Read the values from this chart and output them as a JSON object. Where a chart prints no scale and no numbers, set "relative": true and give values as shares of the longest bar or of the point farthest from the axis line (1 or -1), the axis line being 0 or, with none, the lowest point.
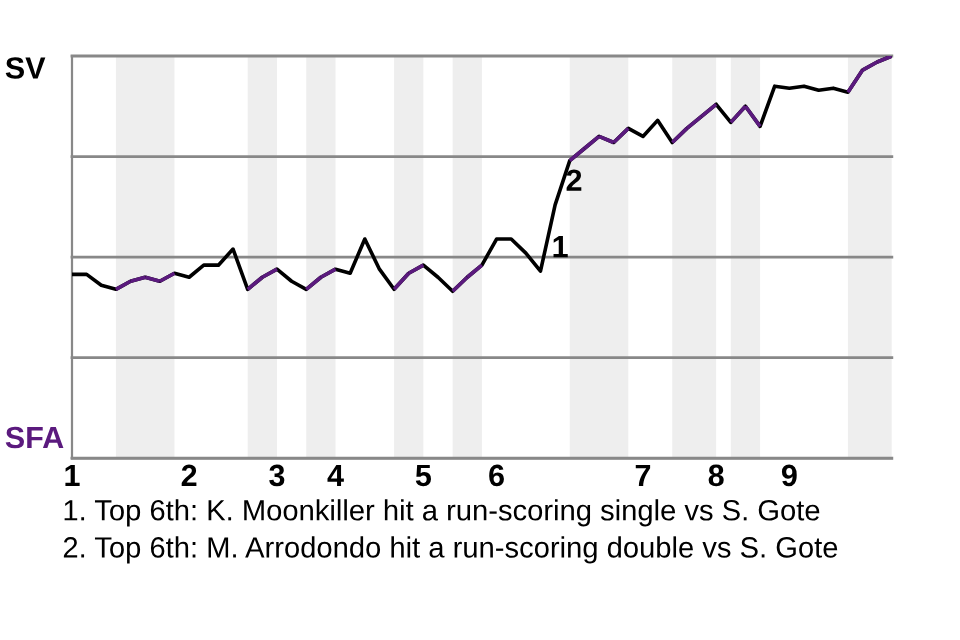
{
  "chart_data": {
    "type": "line",
    "relative": true,
    "categories": [
      "1",
      null,
      null,
      null,
      null,
      null,
      null,
      null,
      "2",
      null,
      null,
      null,
      null,
      null,
      "3",
      null,
      null,
      null,
      "4",
      null,
      null,
      null,
      null,
      null,
      "5",
      null,
      null,
      null,
      null,
      "6",
      null,
      null,
      null,
      null,
      null,
      null,
      null,
      null,
      null,
      "7",
      null,
      null,
      null,
      null,
      "8",
      null,
      null,
      null,
      null,
      "9",
      null,
      null,
      null,
      null,
      null,
      null,
      null
    ],
    "series": [
      {
        "color": "#000000",
        "values": [
          0.457,
          0.457,
          0.43,
          0.42,
          0.44,
          0.45,
          0.44,
          0.46,
          0.45,
          0.48,
          0.48,
          0.52,
          0.42,
          0.45,
          0.47,
          0.44,
          0.42,
          0.45,
          0.47,
          0.46,
          0.545,
          0.47,
          0.42,
          0.46,
          0.48,
          0.45,
          0.415,
          0.45,
          0.48,
          0.545,
          0.545,
          0.51,
          0.465,
          0.63,
          0.74,
          0.77,
          0.8,
          0.785,
          0.82,
          0.8,
          0.84,
          0.785,
          0.82,
          0.85,
          0.88,
          0.835,
          0.875,
          0.825,
          0.925,
          0.92,
          0.925,
          0.915,
          0.92,
          0.91,
          0.965,
          0.985,
          1.0
        ],
        "colors": [
          "#000000",
          "#000000",
          "#000000",
          "#000000",
          "#5b1a7e",
          "#5b1a7e",
          "#5b1a7e",
          "#5b1a7e",
          "#000000",
          "#000000",
          "#000000",
          "#000000",
          "#000000",
          "#5b1a7e",
          "#5b1a7e",
          "#000000",
          "#000000",
          "#5b1a7e",
          "#5b1a7e",
          "#000000",
          "#000000",
          "#000000",
          "#000000",
          "#5b1a7e",
          "#5b1a7e",
          "#000000",
          "#000000",
          "#5b1a7e",
          "#5b1a7e",
          "#000000",
          "#000000",
          "#000000",
          "#000000",
          "#000000",
          "#000000",
          "#5b1a7e",
          "#5b1a7e",
          "#5b1a7e",
          "#5b1a7e",
          "#000000",
          "#000000",
          "#000000",
          "#5b1a7e",
          "#5b1a7e",
          "#5b1a7e",
          "#000000",
          "#5b1a7e",
          "#5b1a7e",
          "#000000",
          "#000000",
          "#000000",
          "#000000",
          "#000000",
          "#000000",
          "#5b1a7e",
          "#5b1a7e",
          "#5b1a7e"
        ]
      }
    ],
    "grid": "y",
    "annotations": [
      "SV",
      "SFA",
      "1",
      "2",
      "1. Top 6th: K. Moonkiller hit a run-scoring single vs S. Gote",
      "2. Top 6th: M. Arrodondo hit a run-scoring double vs S. Gote"
    ],
    "marker": "none",
    "line_style": "solid"
  }
}
